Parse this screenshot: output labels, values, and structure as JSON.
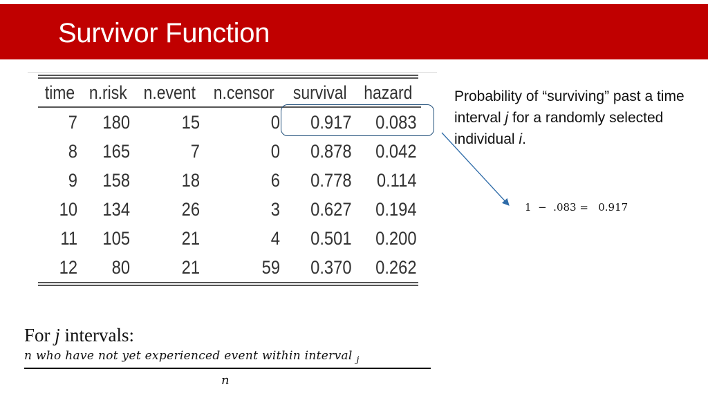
{
  "slide": {
    "title": "Survivor Function"
  },
  "table": {
    "headers": [
      "time",
      "n.risk",
      "n.event",
      "n.censor",
      "survival",
      "hazard"
    ],
    "rows": [
      [
        "7",
        "180",
        "15",
        "0",
        "0.917",
        "0.083"
      ],
      [
        "8",
        "165",
        "7",
        "0",
        "0.878",
        "0.042"
      ],
      [
        "9",
        "158",
        "18",
        "6",
        "0.778",
        "0.114"
      ],
      [
        "10",
        "134",
        "26",
        "3",
        "0.627",
        "0.194"
      ],
      [
        "11",
        "105",
        "21",
        "4",
        "0.501",
        "0.200"
      ],
      [
        "12",
        "80",
        "21",
        "59",
        "0.370",
        "0.262"
      ]
    ]
  },
  "note": {
    "part1": "Probability of “surviving” past a time interval ",
    "var_j": "j",
    "part2": " for a randomly selected individual ",
    "var_i": "i",
    "part3": "."
  },
  "equation": "1  −  .083 =   0.917",
  "formula": {
    "label_prefix": "For ",
    "label_var": "j",
    "label_suffix": " intervals:",
    "numerator": "n who have not yet experienced event within interval",
    "numerator_sub": "j",
    "denominator": "n"
  },
  "colors": {
    "title_bar": "#c00000",
    "highlight": "#1f4e79"
  }
}
